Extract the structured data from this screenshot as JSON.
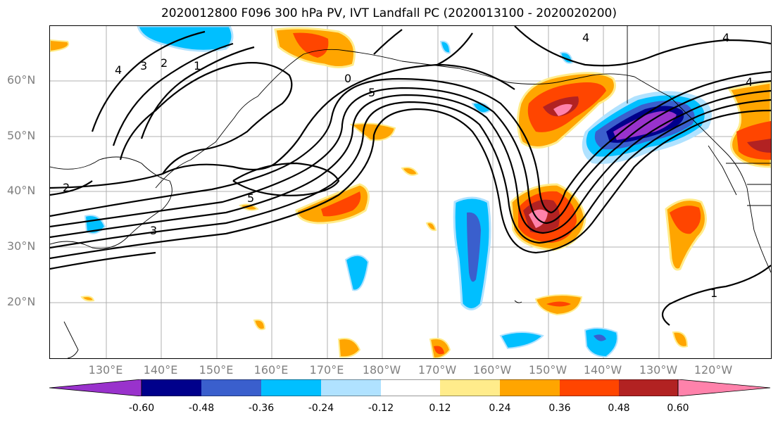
{
  "title": "2020012800 F096 300 hPa PV, IVT Landfall PC (2020013100 - 2020020200)",
  "lat_labels": [
    "60°N",
    "50°N",
    "40°N",
    "30°N",
    "20°N"
  ],
  "lon_labels": [
    "130°E",
    "140°E",
    "150°E",
    "160°E",
    "170°E",
    "180°W",
    "170°W",
    "160°W",
    "150°W",
    "140°W",
    "130°W",
    "120°W"
  ],
  "contour_labels": [
    "4",
    "3",
    "2",
    "1",
    "5",
    "5",
    "2",
    "3",
    "4",
    "1",
    "4",
    "4",
    "0"
  ],
  "colorbar": {
    "ticks": [
      "-0.60",
      "-0.48",
      "-0.36",
      "-0.24",
      "-0.12",
      "0.12",
      "0.24",
      "0.36",
      "0.48",
      "0.60"
    ],
    "colors": [
      "#9932cc",
      "#00008b",
      "#3a5fcd",
      "#00bfff",
      "#b0e2ff",
      "#ffffff",
      "#ffec8b",
      "#ffa500",
      "#ff4500",
      "#b22222",
      "#ff82ab"
    ]
  }
}
